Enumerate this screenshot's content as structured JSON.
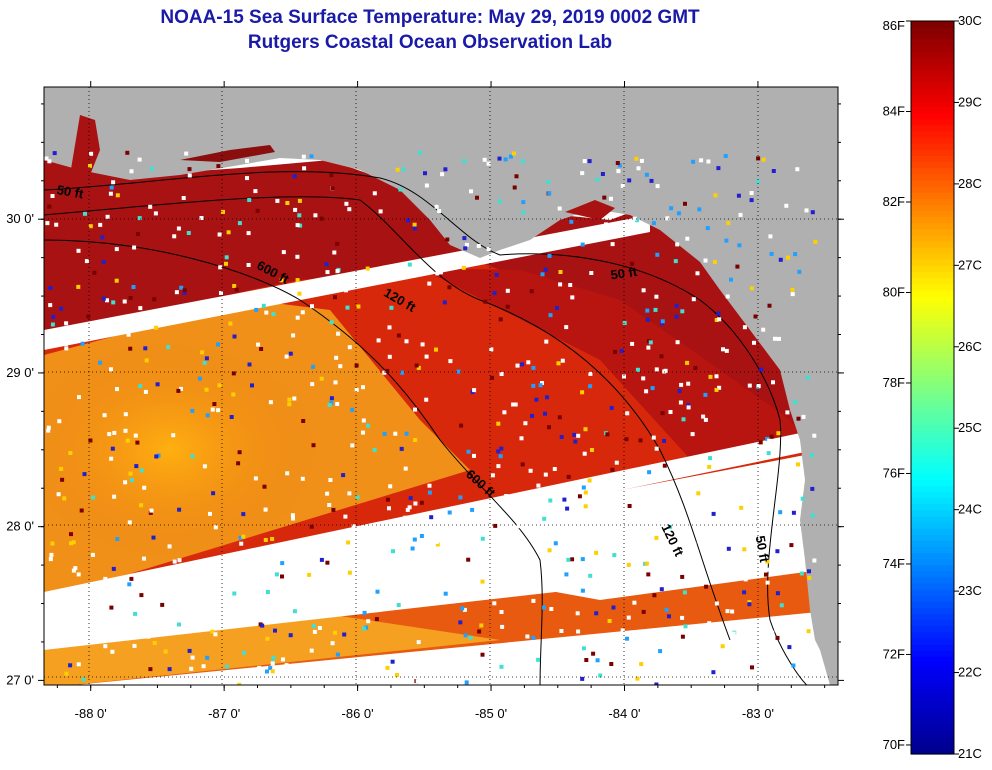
{
  "title": {
    "line1": "NOAA-15 Sea Surface Temperature:  May 29, 2019 0002 GMT",
    "line2": "Rutgers Coastal Ocean Observation Lab"
  },
  "map": {
    "lon_range": [
      -88.35,
      -82.4
    ],
    "lat_range": [
      26.97,
      30.86
    ],
    "lon_ticks": [
      {
        "value": -88,
        "label": "-88 0'"
      },
      {
        "value": -87,
        "label": "-87 0'"
      },
      {
        "value": -86,
        "label": "-86 0'"
      },
      {
        "value": -85,
        "label": "-85 0'"
      },
      {
        "value": -84,
        "label": "-84 0'"
      },
      {
        "value": -83,
        "label": "-83 0'"
      }
    ],
    "lat_ticks": [
      {
        "value": 30,
        "label": "30 0'"
      },
      {
        "value": 29,
        "label": "29 0'"
      },
      {
        "value": 28,
        "label": "28 0'"
      },
      {
        "value": 27,
        "label": "27 0'"
      }
    ],
    "contour_labels": [
      {
        "text": "50 ft",
        "lon": -88.16,
        "lat": 30.15,
        "angle": 10
      },
      {
        "text": "600 ft",
        "lon": -86.65,
        "lat": 29.63,
        "angle": 28
      },
      {
        "text": "120 ft",
        "lon": -85.7,
        "lat": 29.45,
        "angle": 30
      },
      {
        "text": "50 ft",
        "lon": -84.0,
        "lat": 29.62,
        "angle": -8
      },
      {
        "text": "600 ft",
        "lon": -85.1,
        "lat": 28.26,
        "angle": 42
      },
      {
        "text": "120 ft",
        "lon": -83.67,
        "lat": 27.9,
        "angle": 64
      },
      {
        "text": "50 ft",
        "lon": -83.0,
        "lat": 27.85,
        "angle": 80
      }
    ],
    "land_color": "#b0b0b0",
    "missing_color": "#ffffff"
  },
  "colorbar": {
    "f_labels": [
      {
        "value": 86,
        "label": "86F"
      },
      {
        "value": 84,
        "label": "84F"
      },
      {
        "value": 82,
        "label": "82F"
      },
      {
        "value": 80,
        "label": "80F"
      },
      {
        "value": 78,
        "label": "78F"
      },
      {
        "value": 76,
        "label": "76F"
      },
      {
        "value": 74,
        "label": "74F"
      },
      {
        "value": 72,
        "label": "72F"
      },
      {
        "value": 70,
        "label": "70F"
      }
    ],
    "c_labels": [
      {
        "value": 30,
        "label": "30C"
      },
      {
        "value": 29,
        "label": "29C"
      },
      {
        "value": 28,
        "label": "28C"
      },
      {
        "value": 27,
        "label": "27C"
      },
      {
        "value": 26,
        "label": "26C"
      },
      {
        "value": 25,
        "label": "25C"
      },
      {
        "value": 24,
        "label": "24C"
      },
      {
        "value": 23,
        "label": "23C"
      },
      {
        "value": 22,
        "label": "22C"
      },
      {
        "value": 21,
        "label": "21C"
      }
    ],
    "min_c": 21,
    "max_c": 30,
    "colors": [
      "#00008f",
      "#0000ff",
      "#0080ff",
      "#00ffff",
      "#80ff80",
      "#ffff00",
      "#ff8000",
      "#ff0000",
      "#800000"
    ]
  }
}
